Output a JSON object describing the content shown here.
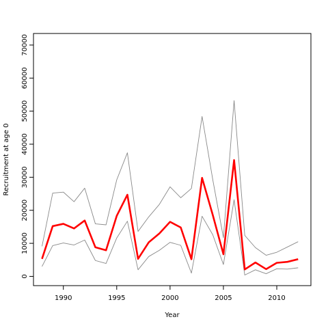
{
  "chart_data": {
    "type": "line",
    "title": "",
    "xlabel": "Year",
    "ylabel": "Recruitment at age 0",
    "xlim": [
      1987.2,
      2013.2
    ],
    "ylim": [
      -2800,
      73500
    ],
    "xticks": [
      1990,
      1995,
      2000,
      2005,
      2010
    ],
    "yticks": [
      0,
      10000,
      20000,
      30000,
      40000,
      50000,
      60000,
      70000
    ],
    "x": [
      1988,
      1989,
      1990,
      1991,
      1992,
      1993,
      1994,
      1995,
      1996,
      1997,
      1998,
      1999,
      2000,
      2001,
      2002,
      2003,
      2004,
      2005,
      2006,
      2007,
      2008,
      2009,
      2010,
      2011,
      2012
    ],
    "grid": false,
    "legend": "none",
    "series": [
      {
        "values": [
          5300,
          15200,
          15900,
          14500,
          16900,
          8800,
          7900,
          18300,
          24700,
          5300,
          10300,
          13000,
          16500,
          14800,
          5200,
          29800,
          18600,
          6700,
          35200,
          2100,
          4200,
          2200,
          4100,
          4400,
          5200
        ],
        "color": "#ff0000",
        "role": "estimate"
      },
      {
        "values": [
          9100,
          25200,
          25500,
          22600,
          26700,
          15900,
          15600,
          29200,
          37400,
          13600,
          18000,
          21800,
          27100,
          23800,
          26600,
          48400,
          29300,
          11700,
          53200,
          12400,
          8700,
          6400,
          7300,
          8900,
          10500
        ],
        "color": "#888888",
        "role": "upper bound"
      },
      {
        "values": [
          3000,
          9300,
          10100,
          9500,
          11000,
          4800,
          3900,
          11600,
          16700,
          2000,
          6000,
          7900,
          10300,
          9400,
          1000,
          18200,
          12600,
          3600,
          23200,
          400,
          2000,
          800,
          2300,
          2200,
          2600
        ],
        "color": "#888888",
        "role": "lower bound"
      }
    ]
  }
}
